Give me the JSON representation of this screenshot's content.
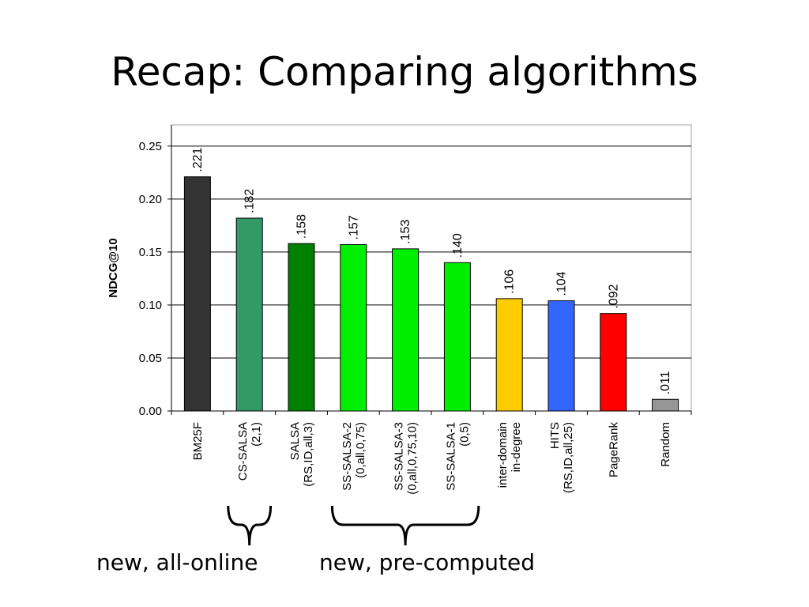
{
  "slide": {
    "title": "Recap: Comparing algorithms"
  },
  "chart_data": {
    "type": "bar",
    "ylabel": "NDCG@10",
    "ylim": [
      0,
      0.27
    ],
    "yticks": [
      "0.00",
      "0.05",
      "0.10",
      "0.15",
      "0.20",
      "0.25"
    ],
    "ytick_values": [
      0,
      0.05,
      0.1,
      0.15,
      0.2,
      0.25
    ],
    "grid": true,
    "categories": [
      [
        "BM25F"
      ],
      [
        "CS-SALSA",
        "(2,1)"
      ],
      [
        "SALSA",
        "(RS,ID,all,3)"
      ],
      [
        "SS-SALSA-2",
        "(0,all,0,75)"
      ],
      [
        "SS-SALSA-3",
        "(0,all,0,75,10)"
      ],
      [
        "SS-SALSA-1",
        "(0,5)"
      ],
      [
        "inter-domain",
        "in-degree"
      ],
      [
        "HITS",
        "(RS,ID,all,25)"
      ],
      [
        "PageRank"
      ],
      [
        "Random"
      ]
    ],
    "values": [
      0.221,
      0.182,
      0.158,
      0.157,
      0.153,
      0.14,
      0.106,
      0.104,
      0.092,
      0.011
    ],
    "value_labels": [
      ".221",
      ".182",
      ".158",
      ".157",
      ".153",
      ".140",
      ".106",
      ".104",
      ".092",
      ".011"
    ],
    "colors": [
      "#333333",
      "#339966",
      "#008000",
      "#00ee00",
      "#00ee00",
      "#00ee00",
      "#ffcc00",
      "#3366ff",
      "#ff0000",
      "#969696"
    ]
  },
  "groups": [
    {
      "label": "new, all-online",
      "from": 1,
      "to": 1
    },
    {
      "label": "new, pre-computed",
      "from": 3,
      "to": 5
    }
  ]
}
